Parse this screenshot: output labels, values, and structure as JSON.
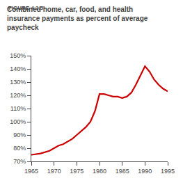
{
  "chart_data": {
    "type": "line",
    "title": "Combined home, car, food, and health\ninsurance payments as percent of average\npaycheck",
    "annotations": [
      "FIGURE 4.2.5"
    ],
    "x": [
      1965,
      1967,
      1969,
      1970,
      1971,
      1972,
      1973,
      1974,
      1975,
      1976,
      1977,
      1978,
      1979,
      1980,
      1981,
      1982,
      1983,
      1984,
      1985,
      1986,
      1987,
      1988,
      1989,
      1990,
      1991,
      1992,
      1993,
      1994,
      1995
    ],
    "values": [
      75,
      76,
      78,
      80,
      82,
      83,
      85,
      87,
      90,
      93,
      96,
      100,
      108,
      121,
      121,
      120,
      119,
      119,
      118,
      119,
      122,
      128,
      135,
      142,
      138,
      132,
      128,
      125,
      123
    ],
    "color": "#CC0000",
    "xlim": [
      1965,
      1995
    ],
    "ylim": [
      70,
      150
    ],
    "xticks": [
      1965,
      1970,
      1975,
      1980,
      1985,
      1990,
      1995
    ],
    "yticks": [
      {
        "value": 70,
        "label": "70%"
      },
      {
        "value": 80,
        "label": "80%"
      },
      {
        "value": 90,
        "label": "90%"
      },
      {
        "value": 100,
        "label": "100%"
      },
      {
        "value": 110,
        "label": "110%"
      },
      {
        "value": 120,
        "label": "120%"
      },
      {
        "value": 130,
        "label": "130%"
      },
      {
        "value": 140,
        "label": "140%"
      },
      {
        "value": 150,
        "label": "150%"
      }
    ],
    "grid": false
  }
}
